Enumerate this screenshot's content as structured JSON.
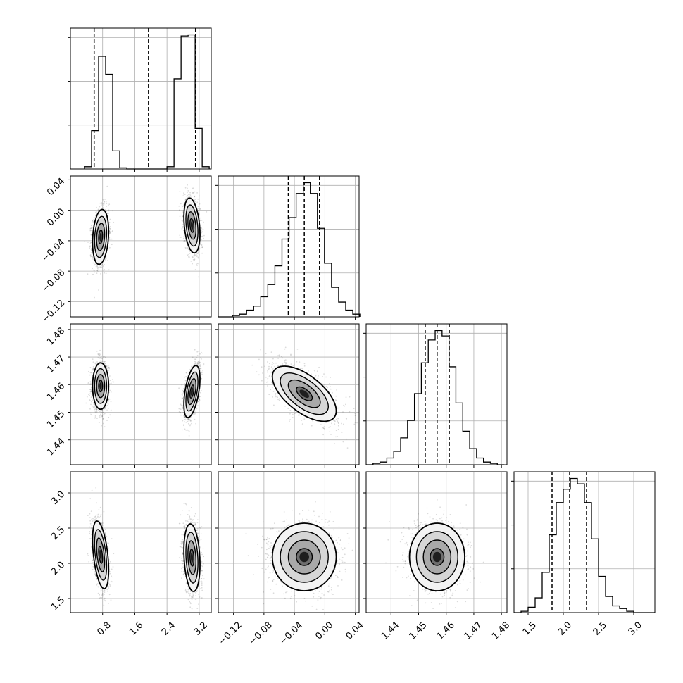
{
  "chart_data": {
    "type": "corner",
    "n_params": 4,
    "grid": true,
    "parameters": [
      {
        "range": [
          0.0,
          3.5
        ],
        "ticks": [
          0.8,
          1.6,
          2.4,
          3.2
        ],
        "tick_labels": [
          "0.8",
          "1.6",
          "2.4",
          "3.2"
        ],
        "quantiles": [
          0.59,
          1.94,
          3.11
        ],
        "hist": {
          "bins": [
            0.35,
            0.525,
            0.7,
            0.875,
            1.05,
            1.225,
            1.4,
            2.4,
            2.575,
            2.75,
            2.925,
            3.1,
            3.275,
            3.45
          ],
          "counts": [
            0.02,
            0.34,
            1.0,
            0.84,
            0.16,
            0.01,
            0.0,
            0.02,
            0.8,
            1.18,
            1.19,
            0.36,
            0.02
          ]
        },
        "modes": [
          {
            "center": 0.75,
            "width": 0.1
          },
          {
            "center": 3.02,
            "width": 0.1
          }
        ]
      },
      {
        "range": [
          -0.14,
          0.045
        ],
        "ticks": [
          -0.12,
          -0.08,
          -0.04,
          0.0,
          0.04
        ],
        "tick_labels": [
          "−0.12",
          "−0.08",
          "−0.04",
          "0.00",
          "0.04"
        ],
        "quantiles": [
          -0.048,
          -0.027,
          -0.007
        ],
        "hist": {
          "bins": [
            -0.14,
            -0.1307,
            -0.1214,
            -0.1121,
            -0.1028,
            -0.0935,
            -0.0842,
            -0.0749,
            -0.0656,
            -0.0563,
            -0.047,
            -0.0377,
            -0.0284,
            -0.0191,
            -0.0098,
            -0.0005,
            0.0088,
            0.0181,
            0.0274,
            0.0367,
            0.046
          ],
          "counts": [
            0.0,
            0.0,
            0.01,
            0.02,
            0.05,
            0.08,
            0.15,
            0.24,
            0.38,
            0.58,
            0.74,
            0.92,
            1.0,
            0.92,
            0.66,
            0.4,
            0.22,
            0.11,
            0.05,
            0.02
          ]
        }
      },
      {
        "range": [
          1.431,
          1.482
        ],
        "ticks": [
          1.44,
          1.45,
          1.46,
          1.47,
          1.48
        ],
        "tick_labels": [
          "1.44",
          "1.45",
          "1.46",
          "1.47",
          "1.48"
        ],
        "quantiles": [
          1.4524,
          1.4567,
          1.4611
        ],
        "hist": {
          "bins": [
            1.431,
            1.4335,
            1.436,
            1.4385,
            1.441,
            1.4435,
            1.446,
            1.4485,
            1.451,
            1.4535,
            1.456,
            1.4585,
            1.461,
            1.4635,
            1.466,
            1.4685,
            1.471,
            1.4735,
            1.476,
            1.4785,
            1.481
          ],
          "counts": [
            0.0,
            0.01,
            0.02,
            0.05,
            0.1,
            0.2,
            0.33,
            0.53,
            0.76,
            0.93,
            1.0,
            0.96,
            0.73,
            0.46,
            0.25,
            0.12,
            0.05,
            0.02,
            0.01,
            0.0
          ]
        }
      },
      {
        "range": [
          1.3,
          3.3
        ],
        "ticks": [
          1.5,
          2.0,
          2.5,
          3.0
        ],
        "tick_labels": [
          "1.5",
          "2.0",
          "2.5",
          "3.0"
        ],
        "quantiles": [
          1.84,
          2.09,
          2.33
        ],
        "hist": {
          "bins": [
            1.3,
            1.4,
            1.5,
            1.6,
            1.7,
            1.8,
            1.9,
            2.0,
            2.1,
            2.2,
            2.3,
            2.4,
            2.5,
            2.6,
            2.7,
            2.8,
            2.9,
            3.0,
            3.1,
            3.2,
            3.3
          ],
          "counts": [
            0.0,
            0.01,
            0.04,
            0.11,
            0.3,
            0.58,
            0.82,
            0.92,
            1.0,
            0.96,
            0.82,
            0.55,
            0.27,
            0.12,
            0.05,
            0.03,
            0.01,
            0.0,
            0.0,
            0.0
          ]
        }
      }
    ],
    "pairs": [
      {
        "row": 1,
        "col": 0,
        "modes": [
          {
            "x": 0.75,
            "y": -0.035,
            "sx": 0.1,
            "sy": 0.018,
            "rho": 0.2
          },
          {
            "x": 3.02,
            "y": -0.02,
            "sx": 0.1,
            "sy": 0.018,
            "rho": -0.3
          }
        ]
      },
      {
        "row": 2,
        "col": 0,
        "modes": [
          {
            "x": 0.75,
            "y": 1.4595,
            "sx": 0.1,
            "sy": 0.0042,
            "rho": 0.0
          },
          {
            "x": 3.02,
            "y": 1.4575,
            "sx": 0.1,
            "sy": 0.0047,
            "rho": 0.5
          }
        ]
      },
      {
        "row": 2,
        "col": 1,
        "modes": [
          {
            "x": -0.027,
            "y": 1.4567,
            "sx": 0.021,
            "sy": 0.005,
            "rho": -0.62
          }
        ]
      },
      {
        "row": 3,
        "col": 0,
        "modes": [
          {
            "x": 0.75,
            "y": 2.12,
            "sx": 0.1,
            "sy": 0.24,
            "rho": -0.45
          },
          {
            "x": 3.02,
            "y": 2.08,
            "sx": 0.1,
            "sy": 0.24,
            "rho": -0.2
          }
        ]
      },
      {
        "row": 3,
        "col": 1,
        "modes": [
          {
            "x": -0.027,
            "y": 2.09,
            "sx": 0.021,
            "sy": 0.24,
            "rho": 0.0
          }
        ]
      },
      {
        "row": 3,
        "col": 2,
        "modes": [
          {
            "x": 1.4567,
            "y": 2.09,
            "sx": 0.005,
            "sy": 0.24,
            "rho": 0.0
          }
        ]
      }
    ]
  }
}
